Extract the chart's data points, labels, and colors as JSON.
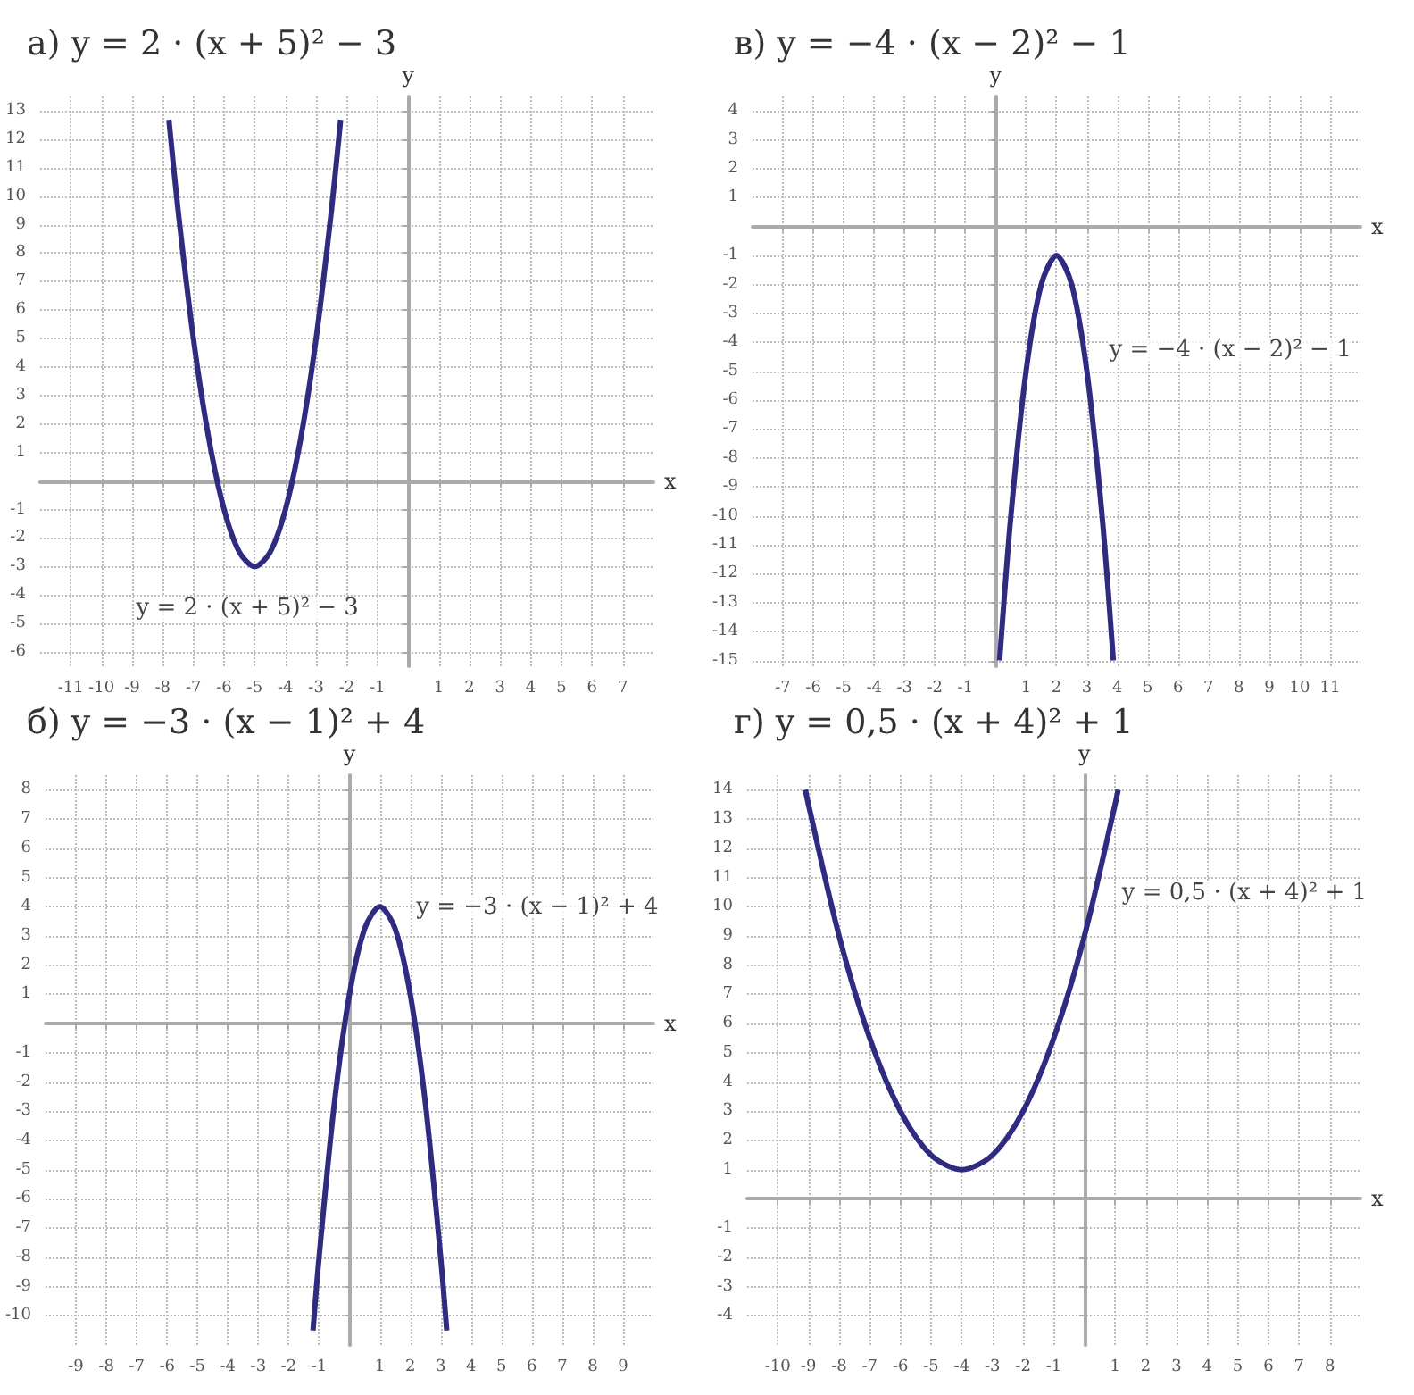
{
  "chart_data": [
    {
      "type": "line",
      "title": "а) y = 2 · (x + 5)² − 3",
      "xlabel": "x",
      "ylabel": "y",
      "grid": true,
      "marker": "none",
      "line_style": "solid",
      "xlim": [
        -12,
        8
      ],
      "ylim": [
        -6.5,
        13.5
      ],
      "xticks": [
        -11,
        -10,
        -9,
        -8,
        -7,
        -6,
        -5,
        -4,
        -3,
        -2,
        -1,
        1,
        2,
        3,
        4,
        5,
        6,
        7
      ],
      "yticks": [
        -6,
        -5,
        -4,
        -3,
        -2,
        -1,
        1,
        2,
        3,
        4,
        5,
        6,
        7,
        8,
        9,
        10,
        11,
        12,
        13
      ],
      "annotations": [
        "y = 2 · (x + 5)² − 3"
      ],
      "series": [
        {
          "color": "#2f2b80",
          "x": [
            -7.8,
            -7.5,
            -7,
            -6.5,
            -6,
            -5.5,
            -5,
            -4.5,
            -4,
            -3.5,
            -3,
            -2.5,
            -2.2
          ],
          "values": [
            12.68,
            9.5,
            5,
            1.5,
            -1,
            -2.5,
            -3,
            -2.5,
            -1,
            1.5,
            5,
            9.5,
            12.68
          ]
        }
      ]
    },
    {
      "type": "line",
      "title": "в) y = −4 · (x − 2)² − 1",
      "xlabel": "x",
      "ylabel": "y",
      "grid": true,
      "marker": "none",
      "line_style": "solid",
      "xlim": [
        -8,
        12
      ],
      "ylim": [
        -15.2,
        4.5
      ],
      "xticks": [
        -7,
        -6,
        -5,
        -4,
        -3,
        -2,
        -1,
        1,
        2,
        3,
        4,
        5,
        6,
        7,
        8,
        9,
        10,
        11
      ],
      "yticks": [
        -15,
        -14,
        -13,
        -12,
        -11,
        -10,
        -9,
        -8,
        -7,
        -6,
        -5,
        -4,
        -3,
        -2,
        -1,
        1,
        2,
        3,
        4
      ],
      "annotations": [
        "y = −4 · (x − 2)² − 1"
      ],
      "series": [
        {
          "color": "#2f2b80",
          "x": [
            0.13,
            0.5,
            1,
            1.5,
            2,
            2.5,
            3,
            3.5,
            3.87
          ],
          "values": [
            -15,
            -10,
            -5,
            -2,
            -1,
            -2,
            -5,
            -10,
            -15
          ]
        }
      ]
    },
    {
      "type": "line",
      "title": "б) y = −3 · (x − 1)² + 4",
      "xlabel": "x",
      "ylabel": "y",
      "grid": true,
      "marker": "none",
      "line_style": "solid",
      "xlim": [
        -10,
        10
      ],
      "ylim": [
        -11,
        8.5
      ],
      "xticks": [
        -9,
        -8,
        -7,
        -6,
        -5,
        -4,
        -3,
        -2,
        -1,
        1,
        2,
        3,
        4,
        5,
        6,
        7,
        8,
        9
      ],
      "yticks": [
        -10,
        -9,
        -8,
        -7,
        -6,
        -5,
        -4,
        -3,
        -2,
        -1,
        1,
        2,
        3,
        4,
        5,
        6,
        7,
        8
      ],
      "annotations": [
        "y = −3 · (x − 1)² + 4"
      ],
      "series": [
        {
          "color": "#2f2b80",
          "x": [
            -1.2,
            -1,
            -0.5,
            0,
            0.5,
            1,
            1.5,
            2,
            2.5,
            3,
            3.2
          ],
          "values": [
            -10.5,
            -8,
            -2.75,
            1,
            3.25,
            4,
            3.25,
            1,
            -2.75,
            -8,
            -10.5
          ]
        }
      ]
    },
    {
      "type": "line",
      "title": "г) y = 0,5 · (x + 4)² + 1",
      "xlabel": "x",
      "ylabel": "y",
      "grid": true,
      "marker": "none",
      "line_style": "solid",
      "xlim": [
        -11,
        9
      ],
      "ylim": [
        -5,
        14.5
      ],
      "xticks": [
        -10,
        -9,
        -8,
        -7,
        -6,
        -5,
        -4,
        -3,
        -2,
        -1,
        1,
        2,
        3,
        4,
        5,
        6,
        7,
        8
      ],
      "yticks": [
        -4,
        -3,
        -2,
        -1,
        1,
        2,
        3,
        4,
        5,
        6,
        7,
        8,
        9,
        10,
        11,
        12,
        13,
        14
      ],
      "annotations": [
        "y = 0,5 · (x + 4)² + 1"
      ],
      "series": [
        {
          "color": "#2f2b80",
          "x": [
            -9.1,
            -9,
            -8,
            -7,
            -6,
            -5,
            -4,
            -3,
            -2,
            -1,
            0,
            1,
            1.1
          ],
          "values": [
            14,
            13.5,
            9,
            5.5,
            3,
            1.5,
            1,
            1.5,
            3,
            5.5,
            9,
            13.5,
            14
          ]
        }
      ]
    }
  ]
}
